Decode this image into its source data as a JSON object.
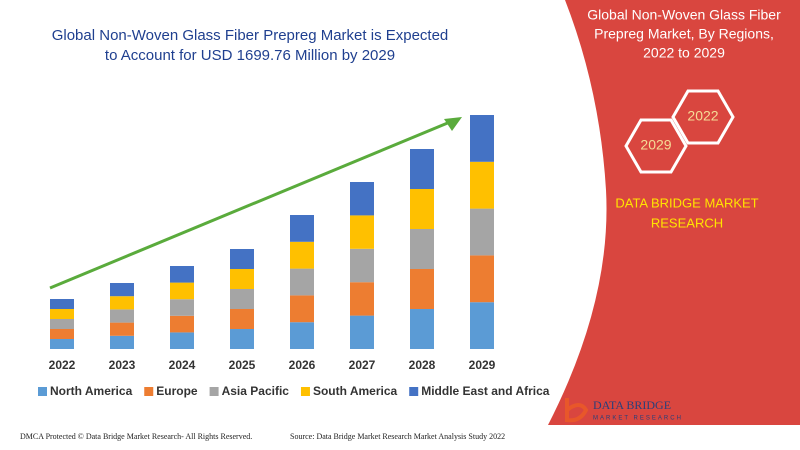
{
  "chart_data": {
    "type": "stacked_bar",
    "title": [
      "Global Non-Woven Glass Fiber Prepreg Market is Expected",
      "to Account for USD 1699.76 Million by 2029"
    ],
    "categories": [
      "2022",
      "2023",
      "2024",
      "2025",
      "2026",
      "2027",
      "2028",
      "2029"
    ],
    "series": [
      {
        "name": "North America",
        "color": "#5b9bd5",
        "values": [
          10,
          13.2,
          16.6,
          20,
          26.8,
          33.4,
          40,
          46.8
        ]
      },
      {
        "name": "Europe",
        "color": "#ed7d31",
        "values": [
          10,
          13.2,
          16.6,
          20,
          26.8,
          33.4,
          40,
          46.8
        ]
      },
      {
        "name": "Asia Pacific",
        "color": "#a5a5a5",
        "values": [
          10,
          13.2,
          16.6,
          20,
          26.8,
          33.4,
          40,
          46.8
        ]
      },
      {
        "name": "South America",
        "color": "#ffc000",
        "values": [
          10,
          13.2,
          16.6,
          20,
          26.8,
          33.4,
          40,
          46.8
        ]
      },
      {
        "name": "Middle East and Africa",
        "color": "#4472c4",
        "values": [
          10,
          13.2,
          16.6,
          20,
          26.8,
          33.4,
          40,
          46.8
        ]
      }
    ],
    "legend": "bottom"
  },
  "panel": {
    "title": [
      "Global Non-Woven Glass Fiber",
      "Prepreg Market, By Regions,",
      "2022 to 2029"
    ],
    "hexagons": [
      "2022",
      "2029"
    ],
    "brand": [
      "DATA BRIDGE MARKET",
      "RESEARCH"
    ]
  },
  "logo": {
    "name": "DATA BRIDGE",
    "tagline": "MARKET RESEARCH"
  },
  "footer": {
    "left": "DMCA Protected © Data Bridge Market Research- All Rights Reserved.",
    "right": "Source: Data Bridge Market Research Market Analysis Study 2022"
  }
}
